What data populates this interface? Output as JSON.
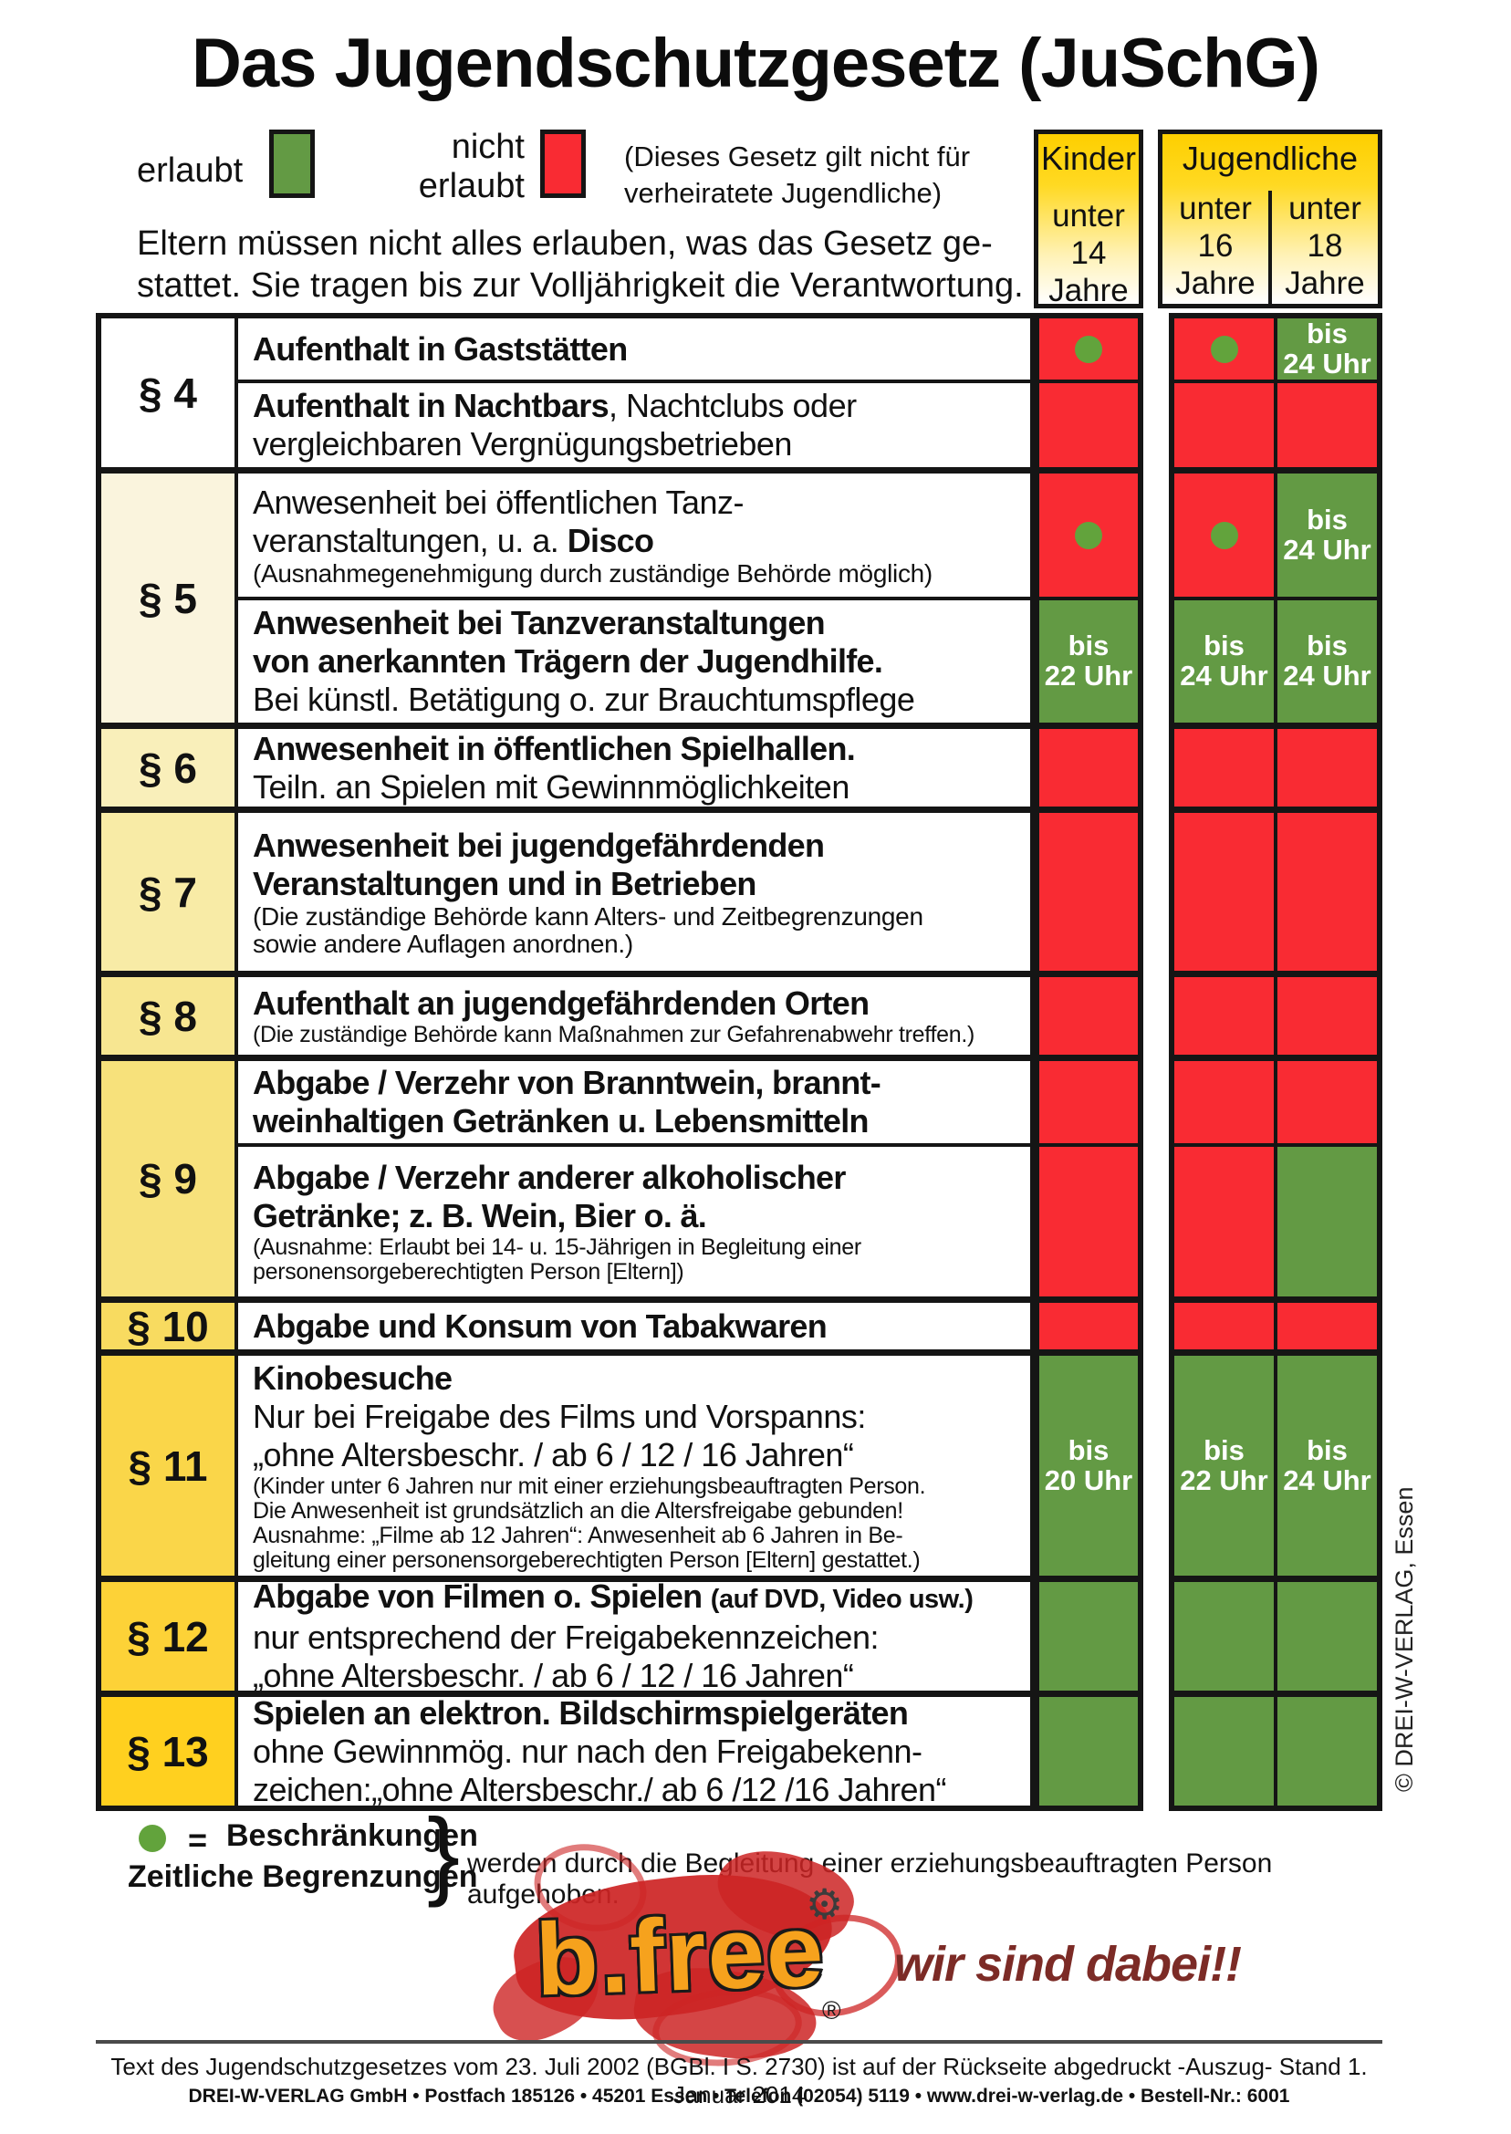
{
  "title": "Das Jugendschutzgesetz (JuSchG)",
  "legend": {
    "erlaubt": "erlaubt",
    "nicht_line1": "nicht",
    "nicht_line2": "erlaubt",
    "note_line1": "(Dieses Gesetz gilt nicht für",
    "note_line2": "verheiratete Jugendliche)"
  },
  "intro": {
    "line1": "Eltern müssen nicht alles erlauben, was das Gesetz ge-",
    "line2": "stattet. Sie tragen bis zur Volljährigkeit die Verantwortung."
  },
  "header": {
    "kinder_title": "Kinder",
    "jugendliche_title": "Jugendliche",
    "unter": "unter",
    "age14": "14",
    "age16": "16",
    "age18": "18",
    "jahre": "Jahre"
  },
  "sections": [
    {
      "label": "§ 4"
    },
    {
      "label": "§ 5"
    },
    {
      "label": "§ 6"
    },
    {
      "label": "§ 7"
    },
    {
      "label": "§ 8"
    },
    {
      "label": "§ 9"
    },
    {
      "label": "§ 10"
    },
    {
      "label": "§ 11"
    },
    {
      "label": "§ 12"
    },
    {
      "label": "§ 13"
    }
  ],
  "rows": [
    {
      "b1": "Aufenthalt in Gaststätten",
      "cells": [
        {
          "state": "no",
          "dot": true
        },
        {
          "state": "no",
          "dot": true
        },
        {
          "state": "yes",
          "l1": "bis",
          "l2": "24 Uhr"
        }
      ]
    },
    {
      "b1": "Aufenthalt in Nachtbars",
      "r1": ", Nachtclubs oder",
      "r2": "vergleichbaren Vergnügungsbetrieben",
      "cells": [
        {
          "state": "no"
        },
        {
          "state": "no"
        },
        {
          "state": "no"
        }
      ]
    },
    {
      "r1": "Anwesenheit bei öffentlichen Tanz-",
      "r2": "veranstaltungen, u. a. ",
      "b1": "Disco",
      "n1": "(Ausnahmegenehmigung durch zuständige Behörde möglich)",
      "cells": [
        {
          "state": "no",
          "dot": true
        },
        {
          "state": "no",
          "dot": true
        },
        {
          "state": "yes",
          "l1": "bis",
          "l2": "24 Uhr"
        }
      ]
    },
    {
      "b1": "Anwesenheit bei Tanzveranstaltungen",
      "b2": "von anerkannten Trägern der Jugendhilfe.",
      "r1": "Bei künstl. Betätigung o. zur Brauchtumspflege",
      "cells": [
        {
          "state": "yes",
          "l1": "bis",
          "l2": "22 Uhr"
        },
        {
          "state": "yes",
          "l1": "bis",
          "l2": "24 Uhr"
        },
        {
          "state": "yes",
          "l1": "bis",
          "l2": "24 Uhr"
        }
      ]
    },
    {
      "b1": "Anwesenheit in öffentlichen Spielhallen.",
      "r1": "Teiln. an Spielen mit Gewinnmöglichkeiten",
      "cells": [
        {
          "state": "no"
        },
        {
          "state": "no"
        },
        {
          "state": "no"
        }
      ]
    },
    {
      "b1": "Anwesenheit bei jugendgefährdenden",
      "b2": "Veranstaltungen und in Betrieben",
      "n1": "(Die zuständige Behörde kann Alters- und Zeitbegrenzungen",
      "n2": "sowie andere Auflagen anordnen.)",
      "cells": [
        {
          "state": "no"
        },
        {
          "state": "no"
        },
        {
          "state": "no"
        }
      ]
    },
    {
      "b1": "Aufenthalt an jugendgefährdenden Orten",
      "n1": "(Die zuständige Behörde kann Maßnahmen zur Gefahrenabwehr treffen.)",
      "cells": [
        {
          "state": "no"
        },
        {
          "state": "no"
        },
        {
          "state": "no"
        }
      ]
    },
    {
      "b1": "Abgabe / Verzehr von Branntwein, brannt-",
      "b2": "weinhaltigen Getränken u. Lebensmitteln",
      "cells": [
        {
          "state": "no"
        },
        {
          "state": "no"
        },
        {
          "state": "no"
        }
      ]
    },
    {
      "b1": "Abgabe / Verzehr anderer alkoholischer",
      "b2": "Getränke; z. B. Wein, Bier o. ä.",
      "n1": "(Ausnahme: Erlaubt bei 14- u. 15-Jährigen in Begleitung einer",
      "n2": "personensorgeberechtigten Person [Eltern])",
      "cells": [
        {
          "state": "no"
        },
        {
          "state": "no"
        },
        {
          "state": "yes"
        }
      ]
    },
    {
      "b1": "Abgabe und Konsum von Tabakwaren",
      "cells": [
        {
          "state": "no"
        },
        {
          "state": "no"
        },
        {
          "state": "no"
        }
      ]
    },
    {
      "b1": "Kinobesuche",
      "r1": "Nur bei Freigabe des Films und Vorspanns:",
      "r2": "„ohne Altersbeschr. / ab 6 / 12 / 16 Jahren“",
      "n1": "(Kinder unter 6 Jahren nur mit einer erziehungsbeauftragten Person.",
      "n2": "Die Anwesenheit ist grundsätzlich an die Altersfreigabe gebunden!",
      "n3": "Ausnahme: „Filme ab 12 Jahren“: Anwesenheit ab 6 Jahren in Be-",
      "n4": "gleitung einer personensorgeberechtigten Person [Eltern] gestattet.)",
      "cells": [
        {
          "state": "yes",
          "l1": "bis",
          "l2": "20 Uhr"
        },
        {
          "state": "yes",
          "l1": "bis",
          "l2": "22 Uhr"
        },
        {
          "state": "yes",
          "l1": "bis",
          "l2": "24 Uhr"
        }
      ]
    },
    {
      "b1": "Abgabe von Filmen o. Spielen ",
      "bn": "(auf DVD, Video usw.)",
      "r1": "nur entsprechend der Freigabekennzeichen:",
      "r2": "„ohne Altersbeschr. / ab 6 / 12 / 16 Jahren“",
      "cells": [
        {
          "state": "yes"
        },
        {
          "state": "yes"
        },
        {
          "state": "yes"
        }
      ]
    },
    {
      "b1": "Spielen an elektron. Bildschirmspielgeräten",
      "r1": "ohne Gewinnmög. nur nach den Freigabekenn-",
      "r2": "zeichen:„ohne Altersbeschr./ ab 6 /12 /16 Jahren“",
      "cells": [
        {
          "state": "yes"
        },
        {
          "state": "yes"
        },
        {
          "state": "yes"
        }
      ]
    }
  ],
  "footer_legend": {
    "equals": "=",
    "bold1": "Beschränkungen",
    "bold2": "Zeitliche Begrenzungen",
    "brace": "}",
    "text": "werden durch die Begleitung einer erziehungsbeauftragten Person aufgehoben."
  },
  "logo": {
    "brand": "b.free",
    "gear_glyph": "⚙",
    "registered": "®",
    "claim": "wir sind dabei!!"
  },
  "side_credit": "© DREI-W-VERLAG, Essen",
  "footer": {
    "line1": "Text des Jugendschutzgesetzes vom 23. Juli 2002 (BGBl. I S. 2730) ist auf der Rückseite abgedruckt -Auszug-  Stand 1. Januar 2014",
    "line2": "DREI-W-VERLAG GmbH • Postfach 185126 • 45201 Essen • Telefon (02054) 5119 • www.drei-w-verlag.de • Bestell-Nr.: 6001"
  },
  "colors": {
    "erlaubt_green": "#639a44",
    "nicht_erlaubt_red": "#f92b33",
    "header_yellow": "#ffd91e",
    "section_yellow_deep": "#ffd01f",
    "logo_orange": "#f6a21d",
    "claim_dark_red": "#7c2b26"
  }
}
